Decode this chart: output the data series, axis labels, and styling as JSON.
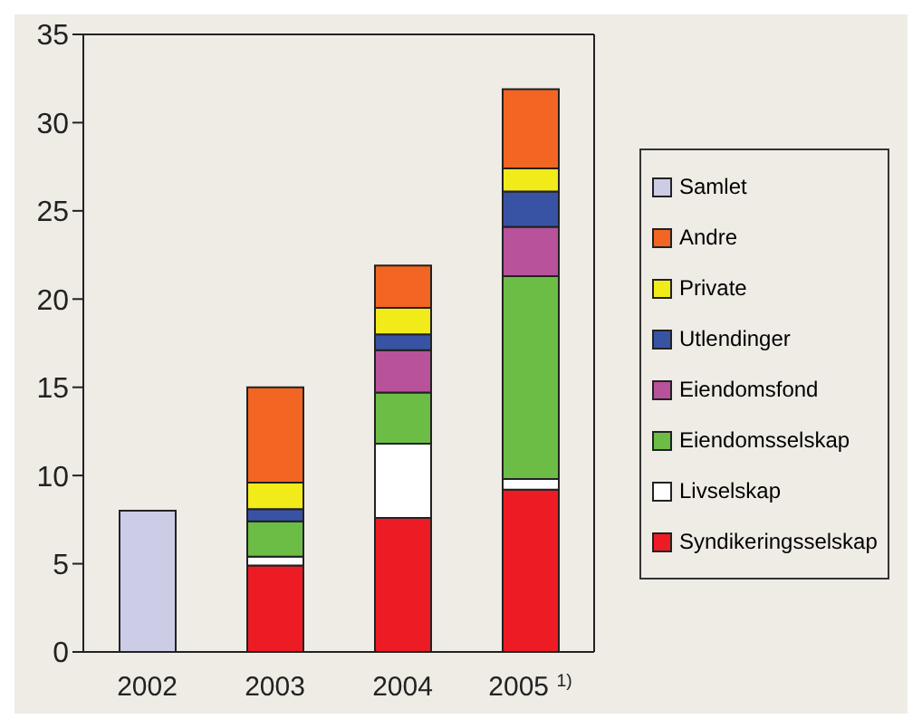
{
  "chart_data": {
    "type": "bar",
    "stacked": true,
    "categories": [
      "2002",
      "2003",
      "2004",
      "2005 $^{1)}$"
    ],
    "ylim": [
      0,
      35
    ],
    "yticks": [
      0,
      5,
      10,
      15,
      20,
      25,
      30,
      35
    ],
    "grid": false,
    "legend": "right",
    "series": [
      {
        "name": "Syndikeringsselskap",
        "color": "#ed1c24",
        "values": [
          null,
          4.9,
          7.6,
          9.2
        ]
      },
      {
        "name": "Livselskap",
        "color": "#ffffff",
        "values": [
          null,
          0.5,
          4.2,
          0.6
        ]
      },
      {
        "name": "Eiendomsselskap",
        "color": "#6cbd45",
        "values": [
          null,
          2.0,
          2.9,
          11.5
        ]
      },
      {
        "name": "Eiendomsfond",
        "color": "#b8529b",
        "values": [
          null,
          null,
          2.4,
          2.8
        ]
      },
      {
        "name": "Utlendinger",
        "color": "#3953a4",
        "values": [
          null,
          0.7,
          0.9,
          2.0
        ]
      },
      {
        "name": "Private",
        "color": "#f2eb1a",
        "values": [
          null,
          1.5,
          1.5,
          1.3
        ]
      },
      {
        "name": "Andre",
        "color": "#f26522",
        "values": [
          null,
          5.4,
          2.4,
          4.5
        ]
      },
      {
        "name": "Samlet",
        "color": "#cccce6",
        "values": [
          8.0,
          null,
          null,
          null
        ]
      }
    ]
  }
}
